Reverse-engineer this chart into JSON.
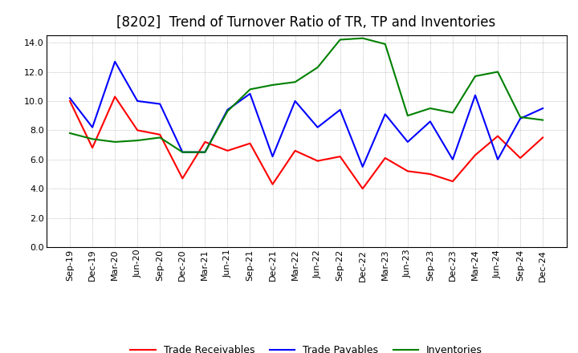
{
  "title": "[8202]  Trend of Turnover Ratio of TR, TP and Inventories",
  "x_labels": [
    "Sep-19",
    "Dec-19",
    "Mar-20",
    "Jun-20",
    "Sep-20",
    "Dec-20",
    "Mar-21",
    "Jun-21",
    "Sep-21",
    "Dec-21",
    "Mar-22",
    "Jun-22",
    "Sep-22",
    "Dec-22",
    "Mar-23",
    "Jun-23",
    "Sep-23",
    "Dec-23",
    "Mar-24",
    "Jun-24",
    "Sep-24",
    "Dec-24"
  ],
  "trade_receivables": [
    10.0,
    6.8,
    10.3,
    8.0,
    7.7,
    4.7,
    7.2,
    6.6,
    7.1,
    4.3,
    6.6,
    5.9,
    6.2,
    4.0,
    6.1,
    5.2,
    5.0,
    4.5,
    6.3,
    7.6,
    6.1,
    7.5
  ],
  "trade_payables": [
    10.2,
    8.2,
    12.7,
    10.0,
    9.8,
    6.5,
    6.5,
    9.4,
    10.5,
    6.2,
    10.0,
    8.2,
    9.4,
    5.5,
    9.1,
    7.2,
    8.6,
    6.0,
    10.4,
    6.0,
    8.8,
    9.5
  ],
  "inventories": [
    7.8,
    7.4,
    7.2,
    7.3,
    7.5,
    6.5,
    6.5,
    9.3,
    10.8,
    11.1,
    11.3,
    12.3,
    14.2,
    14.3,
    13.9,
    9.0,
    9.5,
    9.2,
    11.7,
    12.0,
    8.9,
    8.7
  ],
  "ylim": [
    0.0,
    14.5
  ],
  "yticks": [
    0.0,
    2.0,
    4.0,
    6.0,
    8.0,
    10.0,
    12.0,
    14.0
  ],
  "tr_color": "#ff0000",
  "tp_color": "#0000ff",
  "inv_color": "#008000",
  "legend_tr": "Trade Receivables",
  "legend_tp": "Trade Payables",
  "legend_inv": "Inventories",
  "background_color": "#ffffff",
  "plot_background": "#ffffff",
  "grid_color": "#999999",
  "title_fontsize": 12,
  "axis_fontsize": 8,
  "legend_fontsize": 9,
  "line_width": 1.5
}
